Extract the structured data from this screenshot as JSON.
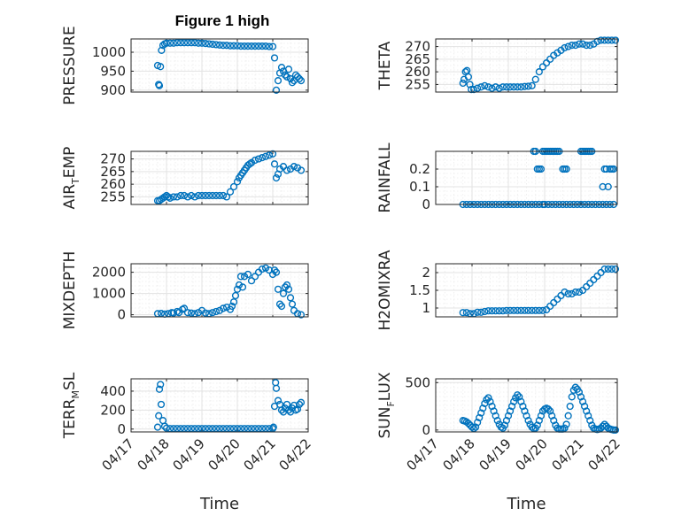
{
  "figure": {
    "title": "Figure 1 high",
    "marker_color": "#0072BD",
    "x_ticks": [
      "04/17",
      "04/18",
      "04/19",
      "04/20",
      "04/21",
      "04/22"
    ],
    "x_label": "Time"
  },
  "chart_data": [
    {
      "type": "scatter",
      "id": "pressure",
      "ylabel": "PRESSURE",
      "ylabel_main": "PRESSURE",
      "ylabel_sub": "",
      "ylabel_tail": "",
      "ylim": [
        895,
        1035
      ],
      "yticks": [
        900,
        950,
        1000
      ],
      "ytick_labels": [
        "900",
        "950",
        "1000"
      ],
      "xlim": [
        0,
        5
      ],
      "grid": true,
      "marker": "circle",
      "x": [
        0.75,
        0.78,
        0.8,
        0.83,
        0.86,
        0.9,
        0.95,
        1.0,
        1.1,
        1.2,
        1.3,
        1.4,
        1.5,
        1.6,
        1.7,
        1.8,
        1.9,
        2.0,
        2.1,
        2.2,
        2.3,
        2.4,
        2.5,
        2.6,
        2.7,
        2.8,
        2.9,
        3.0,
        3.1,
        3.2,
        3.3,
        3.4,
        3.5,
        3.6,
        3.7,
        3.8,
        3.9,
        4.0,
        4.05,
        4.1,
        4.15,
        4.2,
        4.25,
        4.3,
        4.35,
        4.4,
        4.45,
        4.5,
        4.55,
        4.6,
        4.65,
        4.7,
        4.75,
        4.8
      ],
      "y": [
        965,
        915,
        912,
        962,
        1005,
        1018,
        1022,
        1024,
        1024,
        1024,
        1025,
        1025,
        1025,
        1025,
        1025,
        1025,
        1024,
        1024,
        1023,
        1022,
        1021,
        1020,
        1019,
        1018,
        1018,
        1017,
        1017,
        1017,
        1016,
        1016,
        1016,
        1016,
        1016,
        1016,
        1016,
        1016,
        1015,
        1015,
        985,
        900,
        925,
        945,
        960,
        950,
        940,
        935,
        955,
        930,
        920,
        925,
        940,
        935,
        930,
        925
      ]
    },
    {
      "type": "scatter",
      "id": "theta",
      "ylabel": "THETA",
      "ylabel_main": "THETA",
      "ylabel_sub": "",
      "ylabel_tail": "",
      "ylim": [
        252,
        273
      ],
      "yticks": [
        255,
        260,
        265,
        270
      ],
      "ytick_labels": [
        "255",
        "260",
        "265",
        "270"
      ],
      "xlim": [
        0,
        5
      ],
      "grid": true,
      "marker": "circle",
      "x": [
        0.75,
        0.78,
        0.82,
        0.86,
        0.9,
        0.94,
        0.98,
        1.05,
        1.15,
        1.25,
        1.35,
        1.45,
        1.55,
        1.65,
        1.75,
        1.85,
        1.95,
        2.05,
        2.15,
        2.25,
        2.35,
        2.45,
        2.55,
        2.65,
        2.75,
        2.85,
        2.95,
        3.05,
        3.15,
        3.25,
        3.35,
        3.45,
        3.55,
        3.65,
        3.75,
        3.85,
        3.95,
        4.05,
        4.15,
        4.25,
        4.35,
        4.45,
        4.55,
        4.65,
        4.75,
        4.85,
        4.95
      ],
      "y": [
        255.5,
        257,
        260,
        260.5,
        258,
        255,
        253,
        253,
        253.5,
        254,
        254.5,
        254,
        253.5,
        254,
        253.5,
        254,
        254,
        254,
        254,
        254,
        254,
        254.2,
        254.3,
        254.5,
        257,
        260,
        262,
        263.5,
        265,
        266.5,
        267.5,
        268.5,
        269.5,
        270,
        270.5,
        270.5,
        271,
        271,
        270.5,
        270.5,
        271,
        272,
        272.5,
        272.5,
        272.5,
        272.5,
        272.5
      ]
    },
    {
      "type": "scatter",
      "id": "air_temp",
      "ylabel": "AIR_TEMP",
      "ylabel_main": "AIR",
      "ylabel_sub": "T",
      "ylabel_tail": "EMP",
      "ylim": [
        252,
        273
      ],
      "yticks": [
        255,
        260,
        265,
        270
      ],
      "ytick_labels": [
        "255",
        "260",
        "265",
        "270"
      ],
      "xlim": [
        0,
        5
      ],
      "grid": true,
      "marker": "circle",
      "x": [
        0.75,
        0.8,
        0.85,
        0.9,
        0.95,
        1.0,
        1.05,
        1.1,
        1.2,
        1.3,
        1.4,
        1.5,
        1.6,
        1.7,
        1.8,
        1.9,
        2.0,
        2.1,
        2.2,
        2.3,
        2.4,
        2.5,
        2.6,
        2.7,
        2.8,
        2.9,
        3.0,
        3.05,
        3.1,
        3.15,
        3.2,
        3.25,
        3.3,
        3.35,
        3.4,
        3.5,
        3.6,
        3.7,
        3.8,
        3.9,
        4.0,
        4.05,
        4.1,
        4.15,
        4.2,
        4.3,
        4.4,
        4.5,
        4.6,
        4.7,
        4.8
      ],
      "y": [
        253.5,
        253.5,
        254,
        254.5,
        255,
        255.5,
        255,
        254.5,
        255,
        255,
        255.5,
        255.5,
        255,
        255.5,
        255,
        255.5,
        255.5,
        255.5,
        255.5,
        255.5,
        255.5,
        255.5,
        255.5,
        255,
        257,
        259,
        261,
        262.5,
        263.5,
        264.5,
        265.5,
        266.5,
        267.5,
        268,
        268.5,
        269.5,
        270,
        270.5,
        271,
        271.5,
        272,
        268,
        262.5,
        264,
        266,
        267,
        265.5,
        266,
        267,
        266.5,
        265.5
      ]
    },
    {
      "type": "scatter",
      "id": "rainfall",
      "ylabel": "RAINFALL",
      "ylabel_main": "RAINFALL",
      "ylabel_sub": "",
      "ylabel_tail": "",
      "ylim": [
        0,
        0.3
      ],
      "yticks": [
        0,
        0.1,
        0.2
      ],
      "ytick_labels": [
        "0",
        "0.1",
        "0.2"
      ],
      "xlim": [
        0,
        5
      ],
      "grid": true,
      "marker": "circle",
      "x": [
        0.75,
        0.85,
        0.95,
        1.05,
        1.15,
        1.25,
        1.35,
        1.45,
        1.55,
        1.65,
        1.75,
        1.85,
        1.95,
        2.05,
        2.15,
        2.25,
        2.35,
        2.45,
        2.55,
        2.65,
        2.75,
        2.85,
        2.95,
        3.0,
        3.1,
        3.2,
        3.3,
        3.4,
        3.5,
        3.6,
        3.7,
        3.8,
        3.9,
        4.0,
        4.1,
        4.2,
        4.3,
        4.4,
        4.5,
        4.6,
        4.7,
        4.8,
        4.9,
        2.7,
        2.75,
        2.8,
        2.85,
        2.9,
        2.95,
        3.0,
        3.05,
        3.1,
        3.15,
        3.2,
        3.25,
        3.3,
        3.35,
        3.4,
        3.5,
        3.55,
        3.6,
        4.0,
        4.05,
        4.1,
        4.15,
        4.2,
        4.25,
        4.3,
        4.6,
        4.65,
        4.7,
        4.75,
        4.8,
        4.85,
        4.9
      ],
      "y": [
        0,
        0,
        0,
        0,
        0,
        0,
        0,
        0,
        0,
        0,
        0,
        0,
        0,
        0,
        0,
        0,
        0,
        0,
        0,
        0,
        0,
        0,
        0,
        0,
        0,
        0,
        0,
        0,
        0,
        0,
        0,
        0,
        0,
        0,
        0,
        0,
        0,
        0,
        0,
        0,
        0,
        0,
        0,
        0.3,
        0.3,
        0.2,
        0.2,
        0.2,
        0.3,
        0.3,
        0.3,
        0.3,
        0.3,
        0.3,
        0.3,
        0.3,
        0.3,
        0.3,
        0.2,
        0.2,
        0.2,
        0.3,
        0.3,
        0.3,
        0.3,
        0.3,
        0.3,
        0.3,
        0.1,
        0.2,
        0.2,
        0.1,
        0.2,
        0.2,
        0.2
      ]
    },
    {
      "type": "scatter",
      "id": "mixdepth",
      "ylabel": "MIXDEPTH",
      "ylabel_main": "MIXDEPTH",
      "ylabel_sub": "",
      "ylabel_tail": "",
      "ylim": [
        -100,
        2400
      ],
      "yticks": [
        0,
        1000,
        2000
      ],
      "ytick_labels": [
        "0",
        "1000",
        "2000"
      ],
      "xlim": [
        0,
        5
      ],
      "grid": true,
      "marker": "circle",
      "x": [
        0.75,
        0.85,
        0.95,
        1.05,
        1.15,
        1.2,
        1.3,
        1.35,
        1.45,
        1.5,
        1.6,
        1.7,
        1.8,
        1.9,
        2.0,
        2.1,
        2.2,
        2.3,
        2.4,
        2.5,
        2.6,
        2.7,
        2.8,
        2.85,
        2.9,
        2.95,
        3.0,
        3.05,
        3.1,
        3.15,
        3.2,
        3.3,
        3.4,
        3.5,
        3.6,
        3.7,
        3.8,
        3.9,
        4.0,
        4.05,
        4.1,
        4.15,
        4.2,
        4.25,
        4.3,
        4.35,
        4.4,
        4.45,
        4.5,
        4.55,
        4.6,
        4.7,
        4.8
      ],
      "y": [
        50,
        60,
        30,
        50,
        100,
        80,
        150,
        100,
        250,
        300,
        100,
        80,
        50,
        100,
        200,
        80,
        50,
        100,
        150,
        200,
        300,
        350,
        250,
        400,
        600,
        900,
        1200,
        1400,
        1800,
        1300,
        1800,
        1900,
        1600,
        1800,
        2000,
        2150,
        2200,
        2100,
        1900,
        2100,
        2000,
        1200,
        500,
        400,
        1000,
        1300,
        1400,
        1200,
        800,
        500,
        200,
        50,
        0
      ]
    },
    {
      "type": "scatter",
      "id": "h2omixra",
      "ylabel": "H2OMIXRA",
      "ylabel_main": "H2OMIXRA",
      "ylabel_sub": "",
      "ylabel_tail": "",
      "ylim": [
        0.75,
        2.25
      ],
      "yticks": [
        1,
        1.5,
        2
      ],
      "ytick_labels": [
        "1",
        "1.5",
        "2"
      ],
      "xlim": [
        0,
        5
      ],
      "grid": true,
      "marker": "circle",
      "x": [
        0.75,
        0.85,
        0.95,
        1.05,
        1.15,
        1.25,
        1.35,
        1.45,
        1.55,
        1.65,
        1.75,
        1.85,
        1.95,
        2.05,
        2.15,
        2.25,
        2.35,
        2.45,
        2.55,
        2.65,
        2.75,
        2.85,
        2.95,
        3.05,
        3.15,
        3.25,
        3.35,
        3.45,
        3.55,
        3.65,
        3.75,
        3.85,
        3.95,
        4.05,
        4.15,
        4.25,
        4.35,
        4.45,
        4.55,
        4.65,
        4.75,
        4.85,
        4.95
      ],
      "y": [
        0.87,
        0.87,
        0.84,
        0.84,
        0.88,
        0.88,
        0.9,
        0.92,
        0.92,
        0.92,
        0.92,
        0.92,
        0.93,
        0.93,
        0.93,
        0.93,
        0.93,
        0.93,
        0.93,
        0.93,
        0.93,
        0.93,
        0.93,
        0.95,
        1.05,
        1.15,
        1.25,
        1.35,
        1.45,
        1.4,
        1.4,
        1.45,
        1.45,
        1.5,
        1.6,
        1.7,
        1.8,
        1.9,
        2.0,
        2.1,
        2.1,
        2.1,
        2.1
      ]
    },
    {
      "type": "scatter",
      "id": "terr_msl",
      "ylabel": "TERR_MSL",
      "ylabel_main": "TERR",
      "ylabel_sub": "M",
      "ylabel_tail": "SL",
      "ylim": [
        -30,
        530
      ],
      "yticks": [
        0,
        200,
        400
      ],
      "ytick_labels": [
        "0",
        "200",
        "400"
      ],
      "xlim": [
        0,
        5
      ],
      "grid": true,
      "marker": "circle",
      "x": [
        0.75,
        0.78,
        0.8,
        0.83,
        0.85,
        0.9,
        0.95,
        1.0,
        1.1,
        1.2,
        1.3,
        1.4,
        1.5,
        1.6,
        1.7,
        1.8,
        1.9,
        2.0,
        2.1,
        2.2,
        2.3,
        2.4,
        2.5,
        2.6,
        2.7,
        2.8,
        2.9,
        3.0,
        3.1,
        3.2,
        3.3,
        3.4,
        3.5,
        3.6,
        3.7,
        3.8,
        3.9,
        4.0,
        4.02,
        4.05,
        4.08,
        4.1,
        4.15,
        4.2,
        4.25,
        4.3,
        4.35,
        4.4,
        4.45,
        4.5,
        4.55,
        4.6,
        4.65,
        4.7,
        4.75,
        4.8
      ],
      "y": [
        20,
        140,
        420,
        470,
        260,
        90,
        30,
        10,
        5,
        5,
        5,
        5,
        5,
        5,
        5,
        5,
        5,
        5,
        5,
        5,
        5,
        5,
        5,
        5,
        5,
        5,
        5,
        5,
        5,
        5,
        5,
        5,
        5,
        5,
        5,
        5,
        5,
        5,
        20,
        240,
        490,
        430,
        300,
        260,
        200,
        180,
        220,
        260,
        200,
        180,
        220,
        250,
        200,
        210,
        260,
        280
      ]
    },
    {
      "type": "scatter",
      "id": "sun_flux",
      "ylabel": "SUN_FLUX",
      "ylabel_main": "SUN",
      "ylabel_sub": "F",
      "ylabel_tail": "LUX",
      "ylim": [
        -20,
        540
      ],
      "yticks": [
        0,
        500
      ],
      "ytick_labels": [
        "0",
        "500"
      ],
      "xlim": [
        0,
        5
      ],
      "grid": true,
      "marker": "circle",
      "x": [
        0.75,
        0.8,
        0.85,
        0.9,
        0.95,
        1.0,
        1.05,
        1.1,
        1.15,
        1.2,
        1.25,
        1.3,
        1.35,
        1.4,
        1.45,
        1.5,
        1.55,
        1.6,
        1.65,
        1.7,
        1.75,
        1.8,
        1.85,
        1.9,
        1.95,
        2.0,
        2.05,
        2.1,
        2.15,
        2.2,
        2.25,
        2.3,
        2.35,
        2.4,
        2.45,
        2.5,
        2.55,
        2.6,
        2.65,
        2.7,
        2.75,
        2.8,
        2.85,
        2.9,
        2.95,
        3.0,
        3.05,
        3.1,
        3.15,
        3.2,
        3.25,
        3.3,
        3.35,
        3.4,
        3.45,
        3.5,
        3.55,
        3.6,
        3.65,
        3.7,
        3.75,
        3.8,
        3.85,
        3.9,
        3.95,
        4.0,
        4.05,
        4.1,
        4.15,
        4.2,
        4.25,
        4.3,
        4.35,
        4.4,
        4.45,
        4.5,
        4.55,
        4.6,
        4.65,
        4.7,
        4.75,
        4.8,
        4.85,
        4.9,
        4.95
      ],
      "y": [
        100,
        95,
        85,
        70,
        50,
        30,
        15,
        30,
        80,
        130,
        180,
        230,
        280,
        320,
        340,
        300,
        250,
        200,
        150,
        100,
        60,
        30,
        20,
        50,
        100,
        150,
        200,
        250,
        300,
        340,
        370,
        350,
        300,
        250,
        200,
        150,
        100,
        60,
        30,
        15,
        20,
        50,
        100,
        150,
        200,
        220,
        230,
        220,
        200,
        150,
        100,
        50,
        20,
        10,
        10,
        10,
        20,
        60,
        150,
        250,
        350,
        420,
        450,
        430,
        400,
        350,
        300,
        250,
        200,
        150,
        100,
        50,
        20,
        10,
        5,
        10,
        20,
        40,
        60,
        40,
        20,
        10,
        5,
        0,
        0
      ]
    }
  ]
}
